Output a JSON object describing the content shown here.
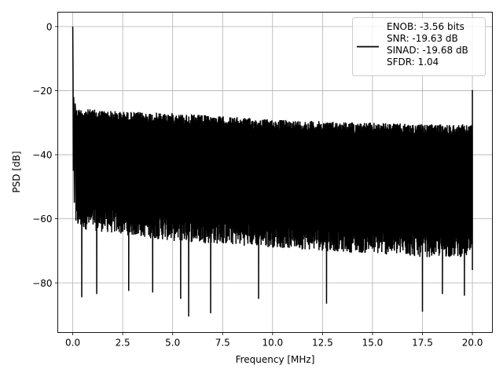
{
  "chart_data": {
    "type": "line",
    "xlabel": "Frequency [MHz]",
    "ylabel": "PSD [dB]",
    "xlim": [
      -0.75,
      21.0
    ],
    "ylim": [
      -95.5,
      4.5
    ],
    "x_ticks": [
      0.0,
      2.5,
      5.0,
      7.5,
      10.0,
      12.5,
      15.0,
      17.5,
      20.0
    ],
    "x_tick_labels": [
      "0.0",
      "2.5",
      "5.0",
      "7.5",
      "10.0",
      "12.5",
      "15.0",
      "17.5",
      "20.0"
    ],
    "y_ticks": [
      0,
      -20,
      -40,
      -60,
      -80
    ],
    "y_tick_labels": [
      "0",
      "−20",
      "−40",
      "−60",
      "−80"
    ],
    "grid": true,
    "legend_position": "top-right",
    "series": [
      {
        "color": "#000000",
        "description_points": {
          "x_start": 0.0,
          "x_end": 20.0,
          "peak_start": {
            "x": 0.0,
            "y": 0.0
          },
          "peak_end": {
            "x": 20.0,
            "y": -19.8
          },
          "upper_envelope": [
            [
              0.2,
              -25.5
            ],
            [
              2.5,
              -26.5
            ],
            [
              5.0,
              -27.0
            ],
            [
              7.5,
              -28.0
            ],
            [
              10.0,
              -29.0
            ],
            [
              12.5,
              -29.5
            ],
            [
              15.0,
              -30.0
            ],
            [
              17.5,
              -30.5
            ],
            [
              20.0,
              -30.5
            ]
          ],
          "lower_envelope": [
            [
              0.2,
              -63
            ],
            [
              2.5,
              -65
            ],
            [
              5.0,
              -67
            ],
            [
              7.5,
              -68
            ],
            [
              10.0,
              -69
            ],
            [
              12.5,
              -70
            ],
            [
              15.0,
              -71
            ],
            [
              17.5,
              -72
            ],
            [
              20.0,
              -72
            ]
          ],
          "deep_dips": [
            [
              0.45,
              -84.5
            ],
            [
              1.2,
              -83.5
            ],
            [
              2.8,
              -82.5
            ],
            [
              4.0,
              -83.0
            ],
            [
              5.4,
              -85.0
            ],
            [
              5.8,
              -90.5
            ],
            [
              6.9,
              -89.5
            ],
            [
              9.3,
              -85.0
            ],
            [
              12.7,
              -86.5
            ],
            [
              17.5,
              -89.0
            ],
            [
              18.5,
              -83.5
            ],
            [
              19.6,
              -84.0
            ]
          ]
        }
      }
    ],
    "legend": {
      "lines": [
        "ENOB: -3.56 bits",
        "SNR: -19.63 dB",
        "SINAD: -19.68 dB",
        "SFDR: 1.04"
      ]
    }
  }
}
